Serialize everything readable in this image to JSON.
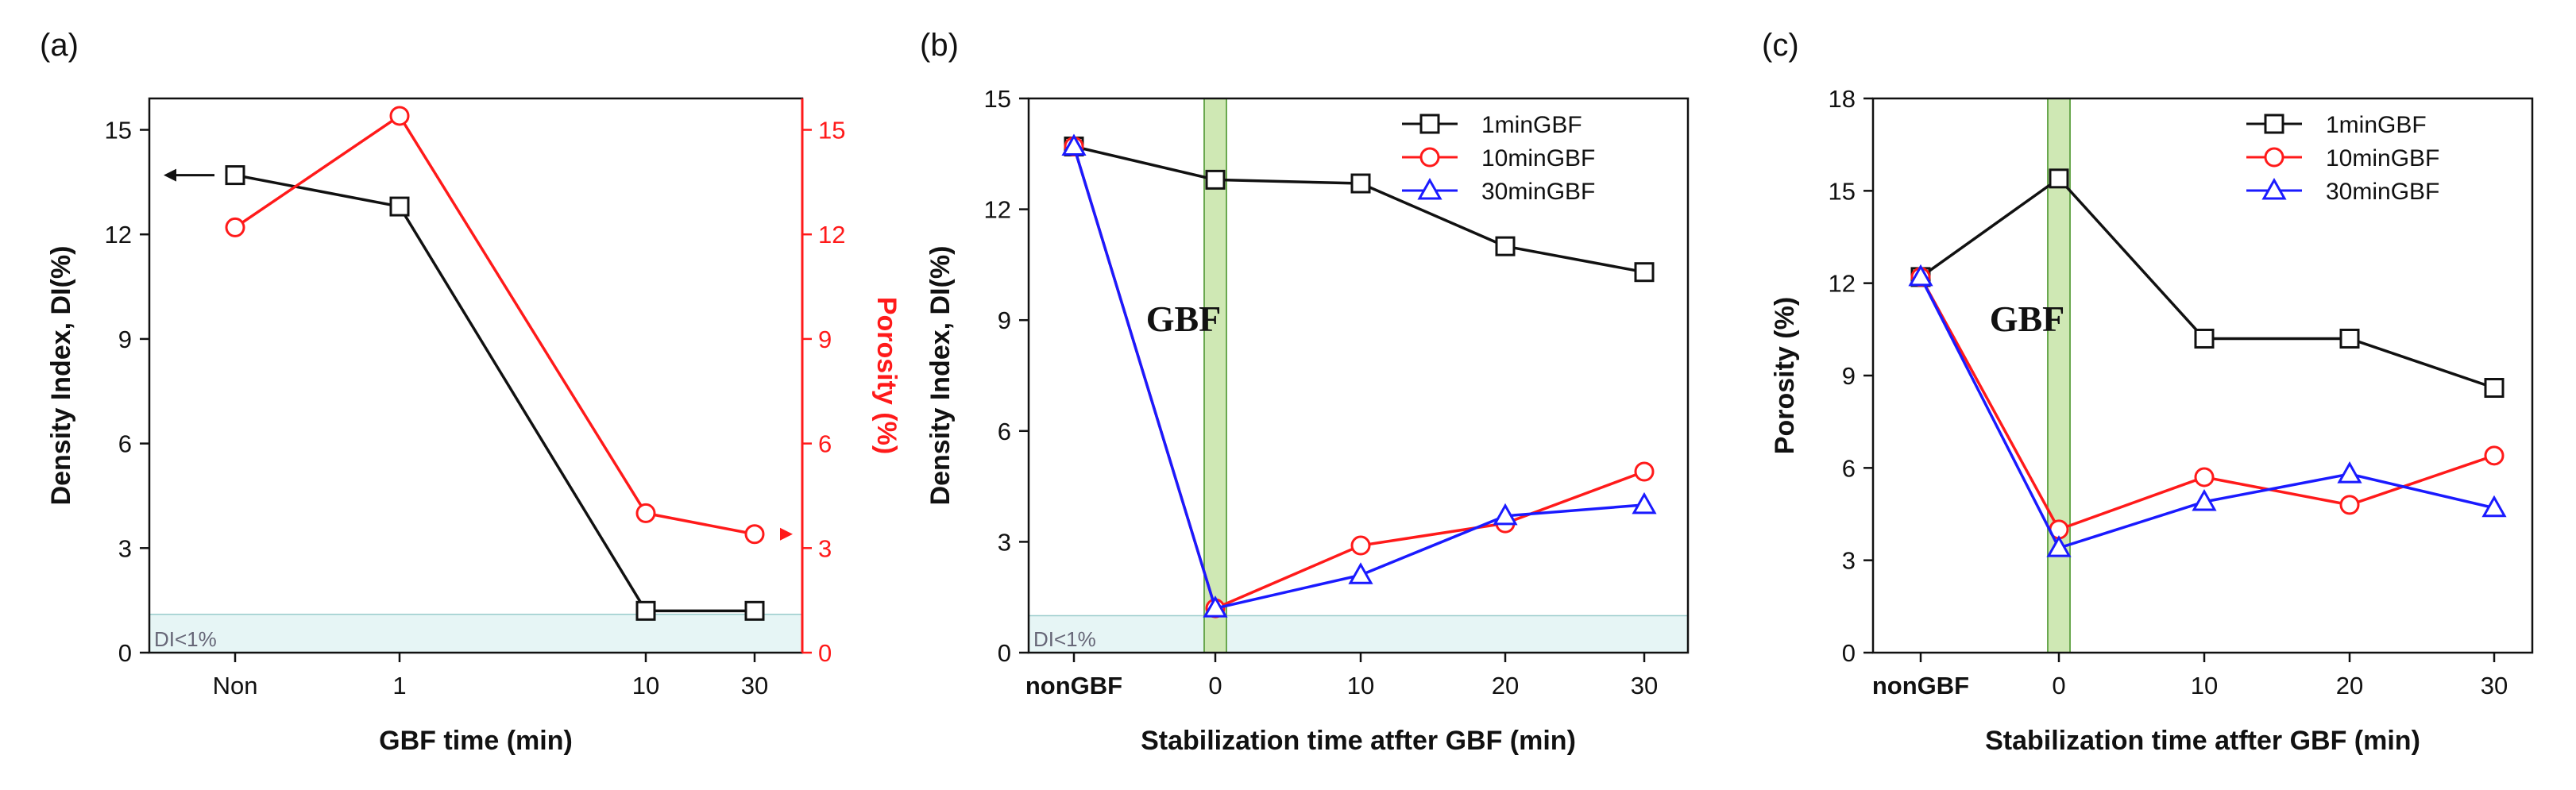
{
  "chart_data": [
    {
      "panel": "(a)",
      "type": "line",
      "categories": [
        "Non",
        "1",
        "10",
        "30"
      ],
      "xlabel": "GBF time (min)",
      "ylabel_left": "Density Index, DI(%)",
      "ylabel_right": "Porosity (%)",
      "ylim": [
        0,
        15.9
      ],
      "yticks": [
        0,
        3,
        6,
        9,
        12,
        15
      ],
      "band_label": "DI<1%",
      "band_range": [
        0,
        1.1
      ],
      "colors": {
        "black": "#111111",
        "red": "#ff1a1a",
        "band": "#e6f5f5"
      },
      "series": [
        {
          "name": "Density Index",
          "axis": "left",
          "color": "#111111",
          "marker": "square",
          "values": [
            13.7,
            12.8,
            1.2,
            1.2
          ]
        },
        {
          "name": "Porosity",
          "axis": "right",
          "color": "#ff1a1a",
          "marker": "circle",
          "values": [
            12.2,
            15.4,
            4.0,
            3.4
          ]
        }
      ]
    },
    {
      "panel": "(b)",
      "type": "line",
      "categories": [
        "nonGBF",
        "0",
        "10",
        "20",
        "30"
      ],
      "xlabel": "Stabilization time atfter GBF (min)",
      "ylabel": "Density Index, DI(%)",
      "ylim": [
        0,
        15
      ],
      "yticks": [
        0,
        3,
        6,
        9,
        12,
        15
      ],
      "annotation": "GBF",
      "band_label": "DI<1%",
      "band_range": [
        0,
        1
      ],
      "legend": [
        "1minGBF",
        "10minGBF",
        "30minGBF"
      ],
      "series": [
        {
          "name": "1minGBF",
          "color": "#111111",
          "marker": "square",
          "values": [
            13.7,
            12.8,
            12.7,
            11.0,
            10.3
          ]
        },
        {
          "name": "10minGBF",
          "color": "#ff1a1a",
          "marker": "circle",
          "values": [
            13.7,
            1.2,
            2.9,
            3.5,
            4.9
          ]
        },
        {
          "name": "30minGBF",
          "color": "#1a1aff",
          "marker": "triangle",
          "values": [
            13.7,
            1.2,
            2.1,
            3.7,
            4.0
          ]
        }
      ]
    },
    {
      "panel": "(c)",
      "type": "line",
      "categories": [
        "nonGBF",
        "0",
        "10",
        "20",
        "30"
      ],
      "xlabel": "Stabilization time atfter GBF (min)",
      "ylabel": "Porosity (%)",
      "ylim": [
        0,
        18
      ],
      "yticks": [
        0,
        3,
        6,
        9,
        12,
        15,
        18
      ],
      "annotation": "GBF",
      "legend": [
        "1minGBF",
        "10minGBF",
        "30minGBF"
      ],
      "series": [
        {
          "name": "1minGBF",
          "color": "#111111",
          "marker": "square",
          "values": [
            12.2,
            15.4,
            10.2,
            10.2,
            8.6
          ]
        },
        {
          "name": "10minGBF",
          "color": "#ff1a1a",
          "marker": "circle",
          "values": [
            12.2,
            4.0,
            5.7,
            4.8,
            6.4
          ]
        },
        {
          "name": "30minGBF",
          "color": "#1a1aff",
          "marker": "triangle",
          "values": [
            12.2,
            3.4,
            4.9,
            5.8,
            4.7
          ]
        }
      ]
    }
  ]
}
